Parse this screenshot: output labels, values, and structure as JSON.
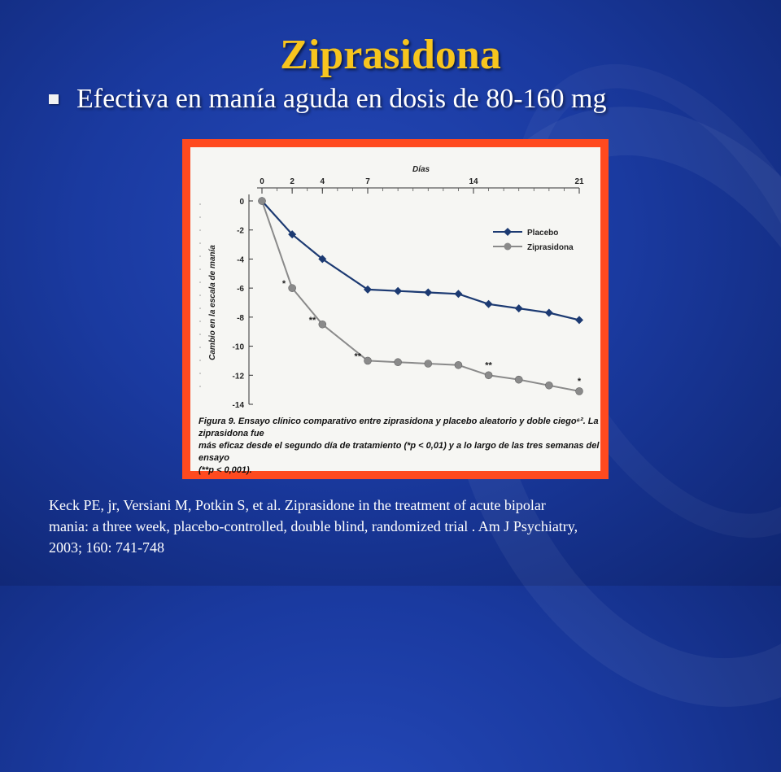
{
  "slide": {
    "title": "Ziprasidona",
    "bullet": "Efectiva en manía aguda en dosis de 80-160 mg",
    "reference_lines": [
      "Keck PE, jr, Versiani M, Potkin S,  et al. Ziprasidone in the treatment of  acute bipolar",
      "mania: a three week, placebo-controlled, double blind, randomized trial . Am J Psychiatry,",
      "2003; 160: 741-748"
    ],
    "colors": {
      "title": "#f7c51e",
      "frame": "#ff4a1f",
      "placebo": "#1c3a72",
      "ziprasidona": "#8a8a8a"
    }
  },
  "chart_data": {
    "type": "line",
    "xlabel": "Días",
    "ylabel": "Cambio en la escala de manía",
    "x_ticks": [
      0,
      2,
      4,
      7,
      14,
      21
    ],
    "x_tick_labels": [
      "0",
      "2",
      "4",
      "7",
      "14",
      "21"
    ],
    "xlim": [
      0,
      21
    ],
    "y_ticks": [
      0,
      -2,
      -4,
      -6,
      -8,
      -10,
      -12,
      -14
    ],
    "y_tick_labels": [
      "0",
      "-2",
      "-4",
      "-6",
      "-8",
      "-10",
      "-12",
      "-14"
    ],
    "ylim": [
      -14,
      0
    ],
    "legend_position": "top-right",
    "series": [
      {
        "name": "Placebo",
        "marker": "diamond",
        "x": [
          0,
          2,
          4,
          7,
          9,
          11,
          13,
          15,
          17,
          19,
          21
        ],
        "y": [
          0,
          -2.3,
          -4.0,
          -6.1,
          -6.2,
          -6.3,
          -6.4,
          -7.1,
          -7.4,
          -7.7,
          -8.2
        ]
      },
      {
        "name": "Ziprasidona",
        "marker": "circle",
        "x": [
          0,
          2,
          4,
          7,
          9,
          11,
          13,
          15,
          17,
          19,
          21
        ],
        "y": [
          0,
          -6.0,
          -8.5,
          -11.0,
          -11.1,
          -11.2,
          -11.3,
          -12.0,
          -12.3,
          -12.7,
          -13.1
        ]
      }
    ],
    "annotations": [
      {
        "text": "*",
        "x": 2,
        "y": -6.0,
        "side": "left"
      },
      {
        "text": "**",
        "x": 4,
        "y": -8.5,
        "side": "left"
      },
      {
        "text": "**",
        "x": 7,
        "y": -11.0,
        "side": "left"
      },
      {
        "text": "**",
        "x": 15,
        "y": -12.0,
        "side": "above"
      },
      {
        "text": "*",
        "x": 21,
        "y": -13.1,
        "side": "above"
      }
    ],
    "caption_lines": [
      "Figura 9. Ensayo clínico comparativo entre ziprasidona y placebo aleatorio y doble ciego⁶². La ziprasidona fue",
      "más eficaz desde el segundo día de tratamiento (*p < 0,01) y a lo largo de las tres semanas del ensayo",
      "(**p < 0,001)."
    ]
  }
}
